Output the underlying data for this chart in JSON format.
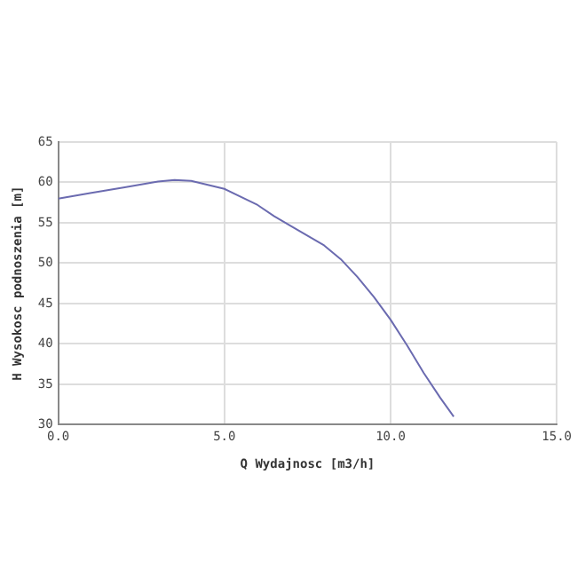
{
  "chart_data": {
    "type": "line",
    "xlabel": "Q Wydajnosc [m3/h]",
    "ylabel": "H Wysokosc podnoszenia [m]",
    "x": [
      0,
      1,
      2,
      3,
      3.5,
      4,
      5,
      6,
      6.5,
      7,
      8,
      8.5,
      9,
      9.5,
      10,
      10.5,
      11,
      11.5,
      11.9
    ],
    "series": [
      {
        "color": "#6b6bb0",
        "values": [
          58,
          58.7,
          59.4,
          60.1,
          60.3,
          60.2,
          59.2,
          57.2,
          55.8,
          54.6,
          52.2,
          50.5,
          48.3,
          45.8,
          43,
          39.8,
          36.4,
          33.3,
          31
        ]
      }
    ],
    "xlim": [
      0,
      15
    ],
    "xticks": [
      {
        "value": 0,
        "label": "0.0"
      },
      {
        "value": 5,
        "label": "5.0"
      },
      {
        "value": 10,
        "label": "10.0"
      },
      {
        "value": 15,
        "label": "15.0"
      }
    ],
    "ylim": [
      30,
      65
    ],
    "yticks": [
      30,
      35,
      40,
      45,
      50,
      55,
      60,
      65
    ],
    "grid": true,
    "legend": false,
    "marker": "none",
    "line_style": "solid"
  }
}
